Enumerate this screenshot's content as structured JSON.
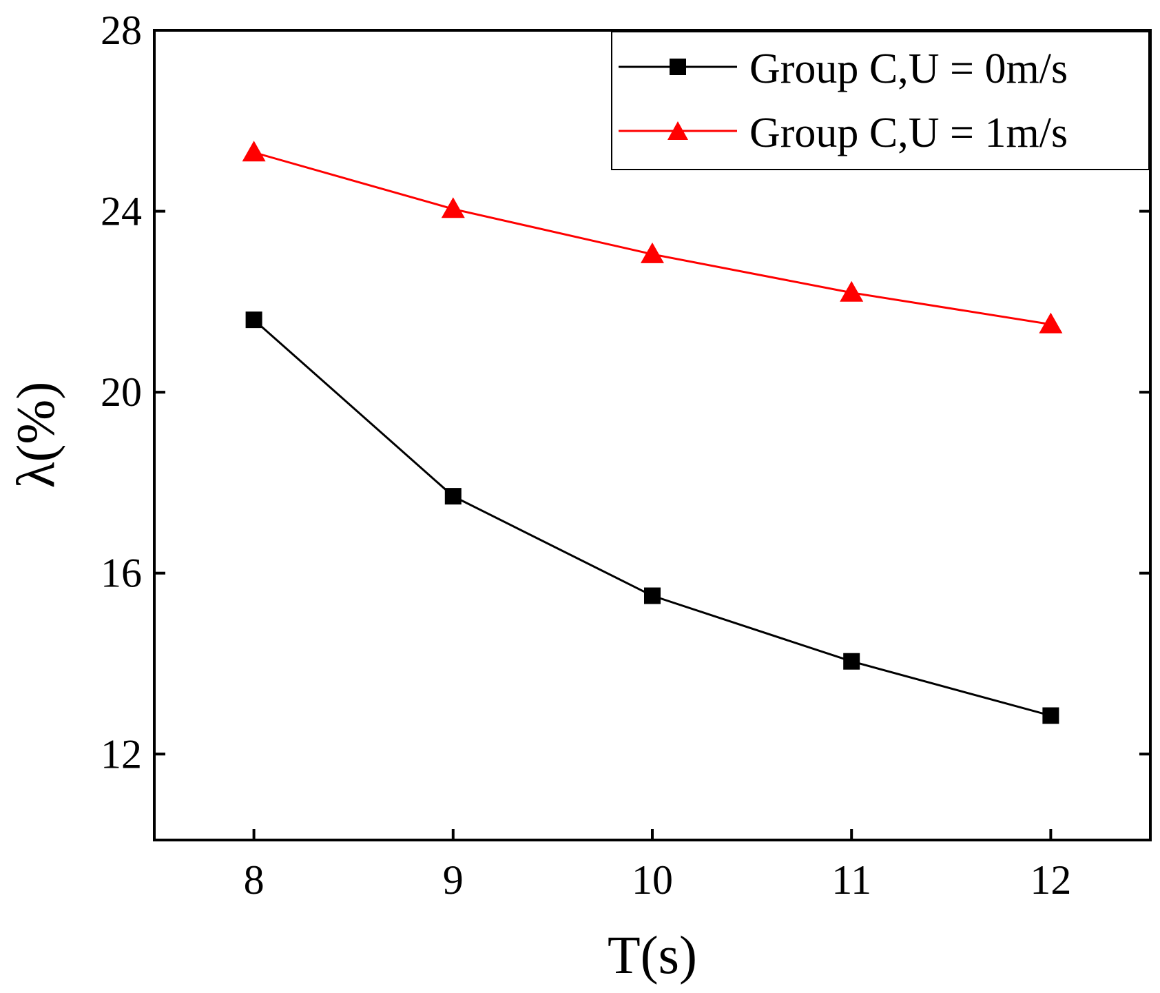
{
  "chart_data": {
    "type": "line",
    "title": "",
    "xlabel": "T(s)",
    "ylabel": "λ(%)",
    "x": [
      8,
      9,
      10,
      11,
      12
    ],
    "xlim": [
      7.5,
      12.5
    ],
    "ylim": [
      10.1,
      28
    ],
    "xticks": [
      8,
      9,
      10,
      11,
      12
    ],
    "yticks": [
      12,
      16,
      20,
      24,
      28
    ],
    "xtick_labels": [
      "8",
      "9",
      "10",
      "11",
      "12"
    ],
    "ytick_labels": [
      "12",
      "16",
      "20",
      "24",
      "28"
    ],
    "legend_position": "top-right",
    "grid": false,
    "series": [
      {
        "name": "Group C,U = 0m/s",
        "color": "#000000",
        "marker": "square",
        "values": [
          21.6,
          17.7,
          15.5,
          14.05,
          12.85
        ]
      },
      {
        "name": "Group C,U = 1m/s",
        "color": "#ff0000",
        "marker": "triangle",
        "values": [
          25.3,
          24.05,
          23.05,
          22.2,
          21.5
        ]
      }
    ]
  }
}
